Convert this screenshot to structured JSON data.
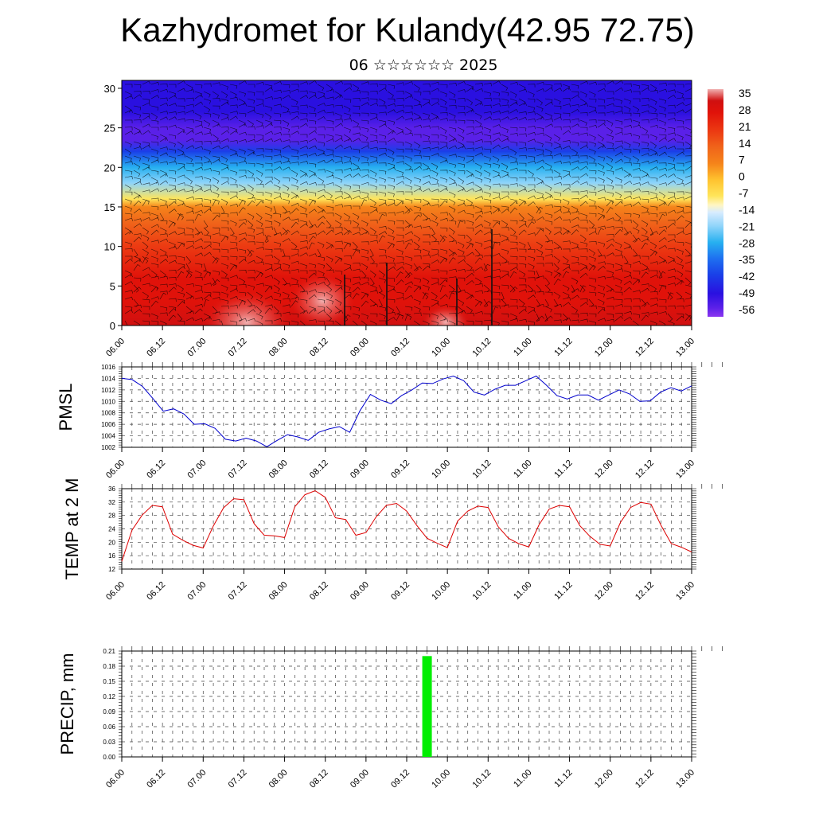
{
  "title": "Kazhydromet for Kulandy(42.95 72.75)",
  "subtitle": "06 ☆☆☆☆☆☆ 2025",
  "chart_data": [
    {
      "type": "heatmap",
      "name": "",
      "y_ticks": [
        "0",
        "5",
        "10",
        "15",
        "20",
        "25",
        "30"
      ],
      "ylim": [
        0,
        31
      ],
      "x_ticks": [
        "06.00",
        "06.12",
        "07.00",
        "07.12",
        "08.00",
        "08.12",
        "09.00",
        "09.12",
        "10.00",
        "10.12",
        "11.00",
        "11.12",
        "12.00",
        "12.12",
        "13.00"
      ],
      "colorbar_ticks": [
        "35",
        "28",
        "21",
        "14",
        "7",
        "0",
        "-7",
        "-14",
        "-21",
        "-28",
        "-35",
        "-42",
        "-49",
        "-56"
      ],
      "colorbar_range": [
        -60,
        38
      ],
      "temperature_profile": [
        [
          0,
          32
        ],
        [
          3,
          29
        ],
        [
          6,
          26
        ],
        [
          10,
          19
        ],
        [
          13,
          12
        ],
        [
          15,
          5
        ],
        [
          16,
          -8
        ],
        [
          18,
          -22
        ],
        [
          20,
          -30
        ],
        [
          22,
          -44
        ],
        [
          23.5,
          -55
        ],
        [
          25,
          -55
        ],
        [
          27,
          -49
        ],
        [
          31,
          -47
        ]
      ],
      "colors": {
        "hot": "#e0120a",
        "warm": "#f5841a",
        "yellow": "#ffe55a",
        "pale": "#c8e6ff",
        "cyan": "#27b0f0",
        "blue": "#1a3fe8",
        "deep": "#2a10e0",
        "violet": "#8a36f0"
      }
    },
    {
      "type": "line",
      "ylabel": "PMSL",
      "ylim": [
        1002,
        1016
      ],
      "y_ticks": [
        "1002",
        "1004",
        "1006",
        "1008",
        "1010",
        "1012",
        "1014",
        "1016"
      ],
      "x_ticks": [
        "06.00",
        "06.12",
        "07.00",
        "07.12",
        "08.00",
        "08.12",
        "09.00",
        "09.12",
        "10.00",
        "10.12",
        "11.00",
        "11.12",
        "12.00",
        "12.12",
        "13.00"
      ],
      "color": "#0000cc",
      "values": [
        1014,
        1013.8,
        1012.6,
        1010.5,
        1008.3,
        1008.7,
        1007.8,
        1006,
        1006.1,
        1005.3,
        1003.4,
        1003.1,
        1003.6,
        1003.1,
        1002.1,
        1003.2,
        1004.2,
        1003.8,
        1003.2,
        1004.6,
        1005.2,
        1005.6,
        1004.6,
        1008.4,
        1011.2,
        1010.2,
        1009.6,
        1011,
        1012,
        1013.2,
        1013.1,
        1013.9,
        1014.4,
        1013.6,
        1011.6,
        1011.1,
        1012.1,
        1012.8,
        1012.8,
        1013.6,
        1014.4,
        1012.8,
        1011,
        1010.4,
        1011.1,
        1011.1,
        1010.2,
        1011.1,
        1012,
        1011.3,
        1010,
        1010.1,
        1011.6,
        1012.4,
        1011.8,
        1012.7
      ]
    },
    {
      "type": "line",
      "ylabel": "TEMP at 2 M",
      "ylim": [
        12,
        36
      ],
      "y_ticks": [
        "12",
        "16",
        "20",
        "24",
        "28",
        "32",
        "36"
      ],
      "x_ticks": [
        "06.00",
        "06.12",
        "07.00",
        "07.12",
        "08.00",
        "08.12",
        "09.00",
        "09.12",
        "10.00",
        "10.12",
        "11.00",
        "11.12",
        "12.00",
        "12.12",
        "13.00"
      ],
      "color": "#dd0000",
      "values": [
        14.3,
        23.6,
        28.1,
        31,
        30.6,
        22.4,
        20.6,
        19.1,
        18.3,
        24.9,
        30.3,
        33,
        32.7,
        25.6,
        22.1,
        21.9,
        21.4,
        30.6,
        34.2,
        35.4,
        33.4,
        27.3,
        26.8,
        22.1,
        22.9,
        27.6,
        31,
        31.6,
        29.3,
        25,
        21.2,
        19.7,
        18.4,
        26.3,
        29.3,
        30.8,
        30.4,
        24.6,
        21.2,
        19.6,
        18.6,
        25.2,
        29.9,
        31,
        30.6,
        25,
        21.8,
        19.4,
        18.9,
        25.9,
        30.4,
        31.9,
        31.4,
        25,
        19.6,
        18.5,
        17.1
      ]
    },
    {
      "type": "bar",
      "ylabel": "PRECIP, mm",
      "ylim": [
        0,
        0.21
      ],
      "y_ticks": [
        "0.00",
        "0.03",
        "0.06",
        "0.09",
        "0.12",
        "0.15",
        "0.18",
        "0.21"
      ],
      "x_ticks": [
        "06.00",
        "06.12",
        "07.00",
        "07.12",
        "08.00",
        "08.12",
        "09.00",
        "09.12",
        "10.00",
        "10.12",
        "11.00",
        "11.12",
        "12.00",
        "12.12",
        "13.00"
      ],
      "color": "#00ee00",
      "bars": [
        {
          "x": 3.75,
          "value": 0.2
        }
      ]
    }
  ]
}
